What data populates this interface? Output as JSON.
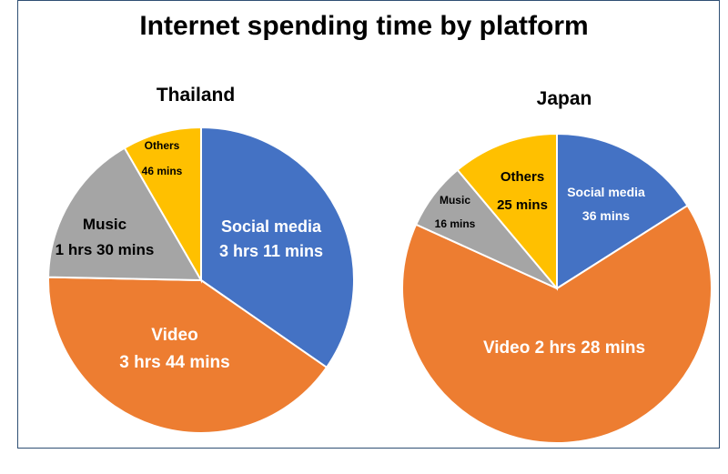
{
  "chart_title": "Internet spending time by platform",
  "colors": {
    "social_media": "#4472c4",
    "video": "#ed7d31",
    "music": "#a5a5a5",
    "others": "#ffc000"
  },
  "chart_data": [
    {
      "type": "pie",
      "title": "Thailand",
      "slices": [
        {
          "category": "Social media",
          "value_minutes": 191,
          "label_lines": [
            "Social media",
            "3 hrs 11 mins"
          ]
        },
        {
          "category": "Video",
          "value_minutes": 224,
          "label_lines": [
            "Video",
            "3 hrs 44 mins"
          ]
        },
        {
          "category": "Music",
          "value_minutes": 90,
          "label_lines": [
            "Music",
            "1 hrs 30 mins"
          ]
        },
        {
          "category": "Others",
          "value_minutes": 46,
          "label_lines": [
            "Others",
            "46 mins"
          ]
        }
      ]
    },
    {
      "type": "pie",
      "title": "Japan",
      "slices": [
        {
          "category": "Social media",
          "value_minutes": 36,
          "label_lines": [
            "Social media",
            "36 mins"
          ]
        },
        {
          "category": "Video",
          "value_minutes": 148,
          "label_lines": [
            "Video 2 hrs 28 mins"
          ]
        },
        {
          "category": "Music",
          "value_minutes": 16,
          "label_lines": [
            "Music",
            "16 mins"
          ]
        },
        {
          "category": "Others",
          "value_minutes": 25,
          "label_lines": [
            "Others",
            "25 mins"
          ]
        }
      ]
    }
  ]
}
